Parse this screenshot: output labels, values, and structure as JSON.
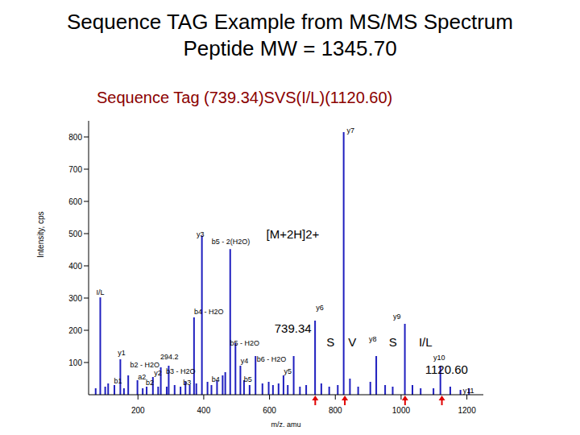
{
  "chart_data": {
    "type": "bar",
    "title": "Sequence TAG Example from MS/MS Spectrum",
    "subtitle": "Peptide MW = 1345.70",
    "heading": "Sequence Tag (739.34)SVS(I/L)(1120.60)",
    "x_label": "m/z, amu",
    "y_label": "Intensity, cps",
    "color": "#1f1fbf",
    "xlim": [
      50,
      1250
    ],
    "xticks": [
      200,
      400,
      600,
      800,
      1000,
      1200
    ],
    "ylim": [
      0,
      850
    ],
    "yticks": [
      100,
      200,
      300,
      400,
      500,
      600,
      700,
      800
    ],
    "x": [
      72,
      86,
      101,
      110,
      129,
      147,
      158,
      171,
      199,
      215,
      227,
      246,
      262,
      270,
      288,
      294,
      312,
      330,
      345,
      358,
      371,
      378,
      395,
      412,
      424,
      441,
      458,
      466,
      481,
      497,
      512,
      523,
      540,
      558,
      579,
      598,
      611,
      628,
      643,
      656,
      674,
      693,
      712,
      739,
      758,
      782,
      808,
      826,
      845,
      870,
      907,
      925,
      952,
      975,
      1012,
      1035,
      1060,
      1099,
      1120,
      1150,
      1181,
      1207
    ],
    "values": [
      20,
      302,
      25,
      35,
      30,
      110,
      20,
      60,
      45,
      20,
      25,
      55,
      25,
      85,
      25,
      90,
      30,
      25,
      40,
      30,
      240,
      35,
      494,
      40,
      30,
      45,
      60,
      70,
      452,
      160,
      90,
      45,
      30,
      120,
      35,
      40,
      30,
      35,
      60,
      30,
      120,
      25,
      30,
      230,
      35,
      25,
      30,
      815,
      50,
      25,
      40,
      120,
      30,
      25,
      220,
      30,
      20,
      20,
      90,
      25,
      15,
      20
    ],
    "peak_labels": [
      {
        "text": "y7",
        "x": 835,
        "y": 812
      },
      {
        "text": "y3",
        "x": 378,
        "y": 490
      },
      {
        "text": "b5 - 2(H2O)",
        "x": 424,
        "y": 467
      },
      {
        "text": "I/L",
        "x": 73,
        "y": 310
      },
      {
        "text": "b4 - H2O",
        "x": 371,
        "y": 251
      },
      {
        "text": "y6",
        "x": 741,
        "y": 263
      },
      {
        "text": "y9",
        "x": 976,
        "y": 236
      },
      {
        "text": "y8",
        "x": 902,
        "y": 165
      },
      {
        "text": "y10",
        "x": 1098,
        "y": 108
      },
      {
        "text": "y11",
        "x": 1188,
        "y": 5
      },
      {
        "text": "y1",
        "x": 139,
        "y": 123
      },
      {
        "text": "294.2",
        "x": 268,
        "y": 111
      },
      {
        "text": "b5 - H2O",
        "x": 480,
        "y": 152
      },
      {
        "text": "b6 - H2O",
        "x": 561,
        "y": 103
      },
      {
        "text": "y4",
        "x": 512,
        "y": 98
      },
      {
        "text": "y5",
        "x": 644,
        "y": 66
      },
      {
        "text": "b2 - H2O",
        "x": 176,
        "y": 84
      },
      {
        "text": "y2",
        "x": 249,
        "y": 59
      },
      {
        "text": "b3 - H2O",
        "x": 285,
        "y": 64
      },
      {
        "text": "b1",
        "x": 127,
        "y": 34
      },
      {
        "text": "a2",
        "x": 200,
        "y": 47
      },
      {
        "text": "b2",
        "x": 224,
        "y": 29
      },
      {
        "text": "b3",
        "x": 337,
        "y": 29
      },
      {
        "text": "b4",
        "x": 424,
        "y": 39
      },
      {
        "text": "b5",
        "x": 522,
        "y": 39
      }
    ],
    "tag_annotations": [
      {
        "text": "[M+2H]2+",
        "x": 590,
        "y": 484
      },
      {
        "text": "739.34",
        "x": 615,
        "y": 192
      },
      {
        "text": "S",
        "x": 773,
        "y": 150
      },
      {
        "text": "V",
        "x": 839,
        "y": 150
      },
      {
        "text": "S",
        "x": 963,
        "y": 150
      },
      {
        "text": "I/L",
        "x": 1054,
        "y": 150
      },
      {
        "text": "1120.60",
        "x": 1073,
        "y": 64
      }
    ],
    "tag_arrows": {
      "x": [
        739,
        829,
        1012,
        1124
      ],
      "color": "#e00000"
    }
  }
}
